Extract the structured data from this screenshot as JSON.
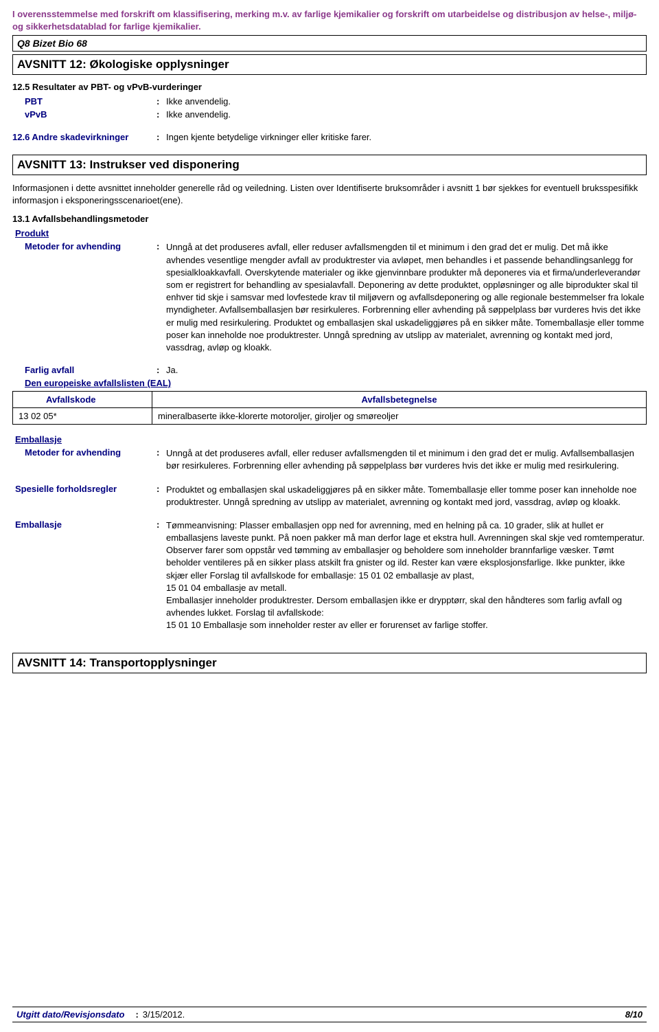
{
  "colors": {
    "accent": "#000080",
    "headerNote": "#8b3a8b",
    "text": "#000000",
    "border": "#000000",
    "background": "#ffffff"
  },
  "headerNote": "I overensstemmelse med forskrift om klassifisering, merking m.v. av farlige kjemikalier og forskrift om utarbeidelse og distribusjon av helse-, miljø- og sikkerhetsdatablad for farlige kjemikalier.",
  "productName": "Q8 Bizet Bio 68",
  "section12": {
    "title": "AVSNITT 12: Økologiske opplysninger",
    "sub125": {
      "heading": "12.5 Resultater av PBT- og vPvB-vurderinger",
      "pbtLabel": "PBT",
      "pbtValue": "Ikke anvendelig.",
      "vpvbLabel": "vPvB",
      "vpvbValue": "Ikke anvendelig."
    },
    "sub126": {
      "label": "12.6 Andre skadevirkninger",
      "value": "Ingen kjente betydelige virkninger eller kritiske farer."
    }
  },
  "section13": {
    "title": "AVSNITT 13: Instrukser ved disponering",
    "intro": "Informasjonen i dette avsnittet inneholder generelle råd og veiledning. Listen over Identifiserte bruksområder i avsnitt 1 bør sjekkes for eventuell bruksspesifikk informasjon i eksponeringsscenarioet(ene).",
    "sub131": "13.1 Avfallsbehandlingsmetoder",
    "produktHeading": "Produkt",
    "methodLabel": "Metoder for avhending",
    "productMethodValue": "Unngå at det produseres avfall, eller reduser avfallsmengden til et minimum i den grad det er mulig. Det må ikke avhendes vesentlige mengder avfall av produktrester via avløpet, men behandles i et passende behandlingsanlegg for spesialkloakkavfall. Overskytende materialer og ikke gjenvinnbare produkter må deponeres via et firma/underleverandør som er registrert for behandling av spesialavfall. Deponering av dette produktet, oppløsninger og alle biprodukter skal til enhver tid skje i samsvar med lovfestede krav til miljøvern og avfallsdeponering og alle regionale bestemmelser fra lokale myndigheter. Avfallsemballasjen bør resirkuleres. Forbrenning eller avhending på søppelplass bør vurderes hvis det ikke er mulig med resirkulering. Produktet og emballasjen skal uskadeliggjøres på en sikker måte. Tomemballasje eller tomme poser kan inneholde noe produktrester. Unngå spredning av utslipp av materialet, avrenning og kontakt med jord, vassdrag, avløp og kloakk.",
    "hazLabel": "Farlig avfall",
    "hazValue": "Ja.",
    "ealHeading": "Den europeiske avfallslisten (EAL)",
    "tableHeaders": {
      "code": "Avfallskode",
      "desc": "Avfallsbetegnelse"
    },
    "tableRow": {
      "code": "13 02 05*",
      "desc": "mineralbaserte ikke-klorerte motoroljer, giroljer og smøreoljer"
    },
    "emballasjeHeading": "Emballasje",
    "packagingMethodValue": "Unngå at det produseres avfall, eller reduser avfallsmengden til et minimum i den grad det er mulig. Avfallsemballasjen bør resirkuleres. Forbrenning eller avhending på søppelplass bør vurderes hvis det ikke er mulig med resirkulering.",
    "specialLabel": "Spesielle forholdsregler",
    "specialValue": "Produktet og emballasjen skal uskadeliggjøres på en sikker måte. Tomemballasje eller tomme poser kan inneholde noe produktrester. Unngå spredning av utslipp av materialet, avrenning og kontakt med jord, vassdrag, avløp og kloakk.",
    "emballasjeLabel": "Emballasje",
    "emballasjeValue": "Tømmeanvisning: Plasser emballasjen opp ned for avrenning, med en helning på ca. 10 grader, slik at hullet er emballasjens laveste punkt. På noen pakker må man derfor lage et ekstra hull. Avrenningen skal skje ved romtemperatur.\nObserver farer som oppstår ved tømming av emballasjer og beholdere som inneholder brannfarlige væsker. Tømt beholder ventileres på en sikker plass atskilt fra gnister og ild. Rester kan være eksplosjonsfarlige. Ikke punkter, ikke skjær eller Forslag til avfallskode for emballasje: 15 01 02 emballasje av plast,\n15 01 04 emballasje av metall.\nEmballasjer inneholder produktrester. Dersom emballasjen ikke er drypptørr, skal den håndteres som farlig avfall og avhendes lukket. Forslag til avfallskode:\n15 01 10 Emballasje som inneholder rester av eller er forurenset av farlige stoffer."
  },
  "section14": {
    "title": "AVSNITT 14: Transportopplysninger"
  },
  "footer": {
    "label": "Utgitt dato/Revisjonsdato",
    "value": "3/15/2012.",
    "page": "8/10"
  }
}
